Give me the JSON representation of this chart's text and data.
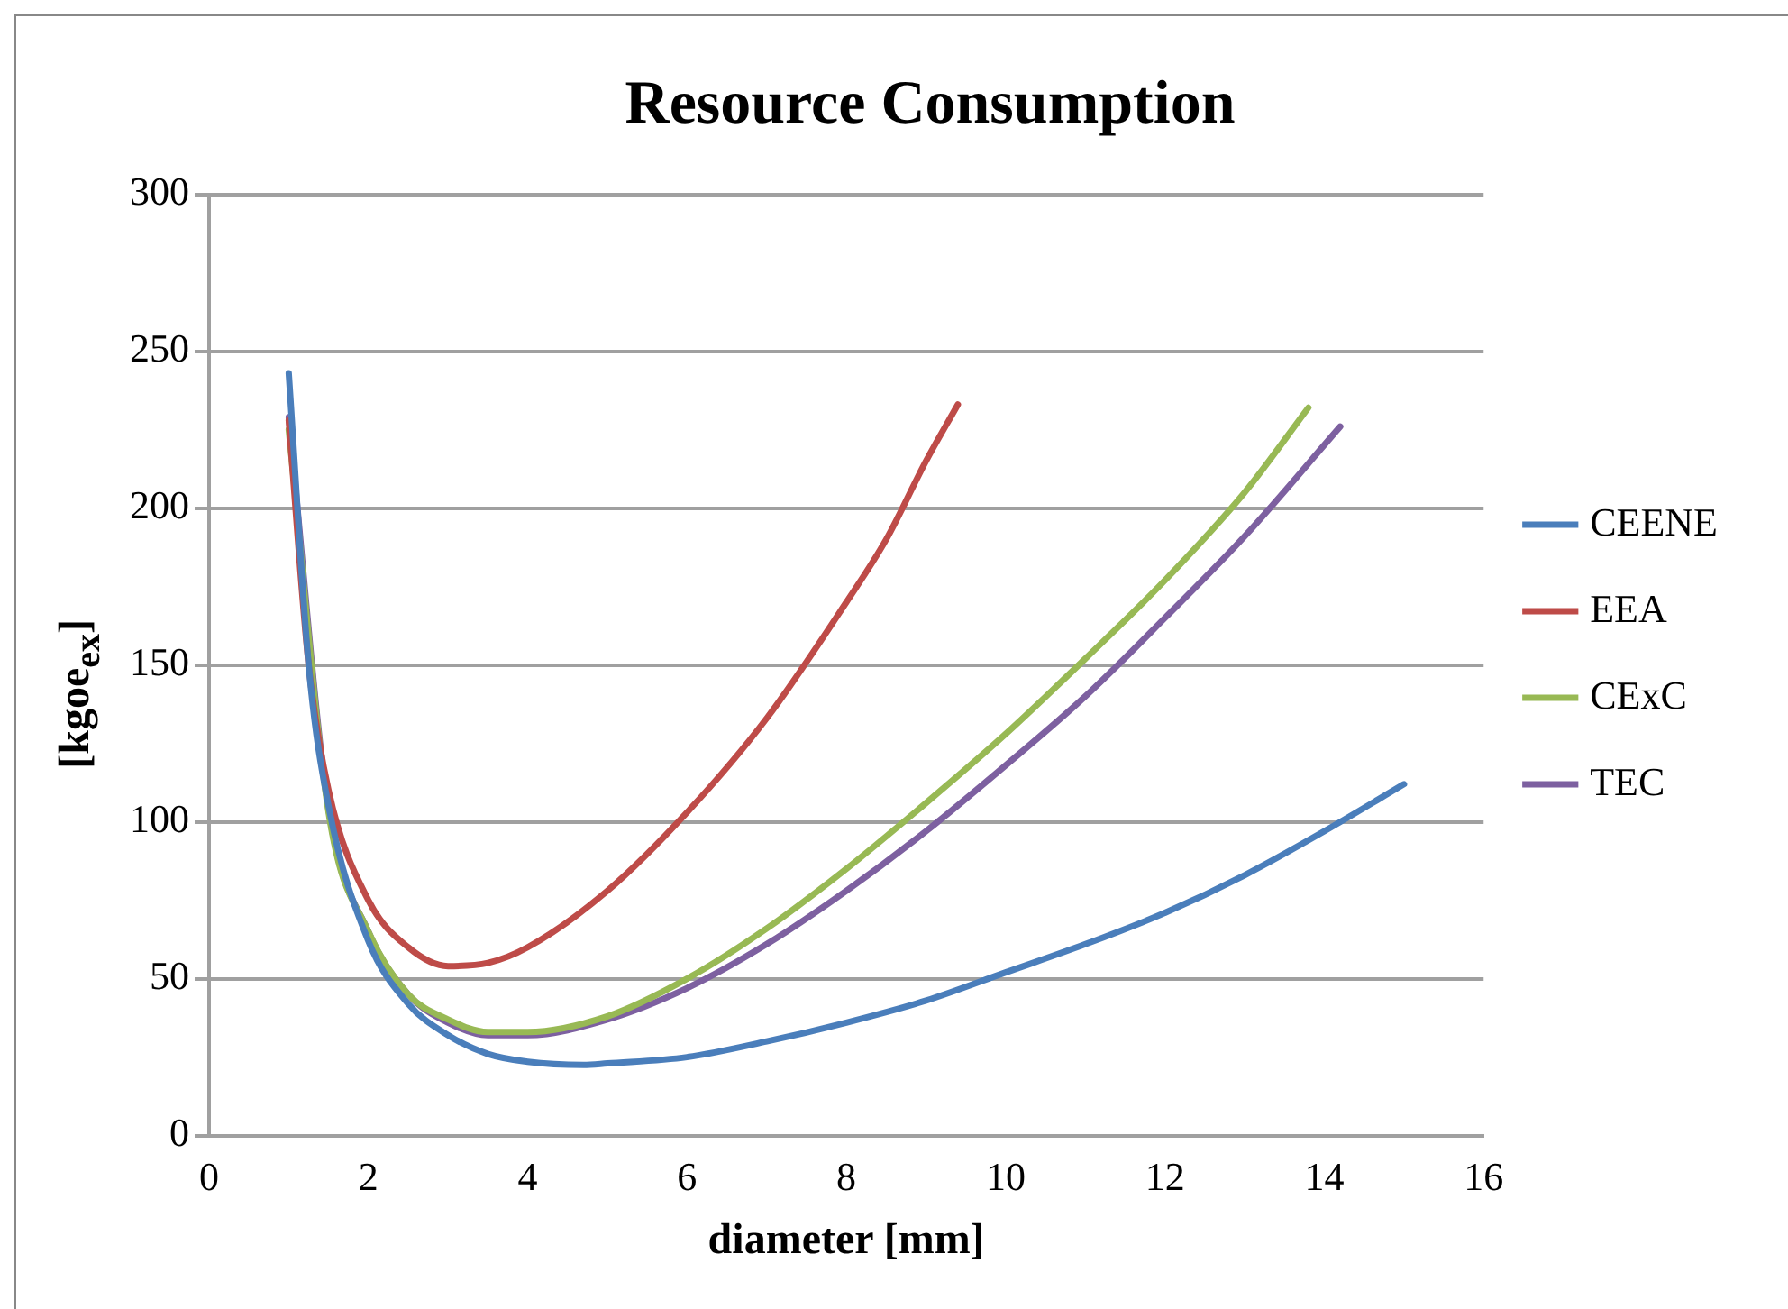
{
  "chart_data": {
    "type": "line",
    "title": "Resource Consumption",
    "xlabel": "diameter [mm]",
    "ylabel": "[kgoe$_{ex}$]",
    "xlim": [
      0,
      16
    ],
    "xticks": [
      0,
      2,
      4,
      6,
      8,
      10,
      12,
      14,
      16
    ],
    "ylim": [
      0,
      300
    ],
    "yticks": [
      0,
      50,
      100,
      150,
      200,
      250,
      300
    ],
    "grid": "y",
    "legend": "right",
    "marker": "none",
    "line_style": "solid",
    "series": [
      {
        "name": "CEENE",
        "color": "#4a7ebb",
        "x": [
          1,
          1.25,
          1.5,
          2,
          2.5,
          3,
          3.5,
          4,
          4.7,
          5,
          6,
          7,
          8,
          9,
          10,
          11,
          12,
          13,
          14,
          15
        ],
        "values": [
          243,
          150,
          105,
          62,
          42,
          32,
          26,
          23.5,
          22.5,
          23,
          25,
          30,
          36,
          43,
          52,
          61,
          71,
          83,
          97,
          112
        ]
      },
      {
        "name": "EEA",
        "color": "#be4b48",
        "x": [
          1,
          1.25,
          1.5,
          2,
          2.5,
          3,
          3.5,
          4,
          5,
          6,
          7,
          8,
          8.5,
          9,
          9.4
        ],
        "values": [
          228,
          150,
          110,
          75,
          60,
          54,
          55,
          60,
          78,
          103,
          133,
          170,
          190,
          215,
          233
        ]
      },
      {
        "name": "CExC",
        "color": "#98b954",
        "x": [
          1,
          1.5,
          2,
          2.5,
          3,
          3.5,
          4,
          5,
          6,
          7,
          8,
          9,
          10,
          11,
          12,
          13,
          13.8
        ],
        "values": [
          225,
          103,
          65,
          45,
          37,
          33,
          33,
          38,
          50,
          66,
          85,
          106,
          128,
          152,
          177,
          205,
          232
        ]
      },
      {
        "name": "TEC",
        "color": "#7d60a0",
        "x": [
          1,
          1.5,
          2,
          2.5,
          3,
          3.5,
          4,
          5,
          6,
          7,
          8,
          9,
          10,
          11,
          12,
          13,
          14.2
        ],
        "values": [
          229,
          104,
          65,
          45,
          36,
          32,
          32,
          37,
          47,
          61,
          78,
          97,
          118,
          140,
          165,
          191,
          226
        ]
      }
    ]
  }
}
